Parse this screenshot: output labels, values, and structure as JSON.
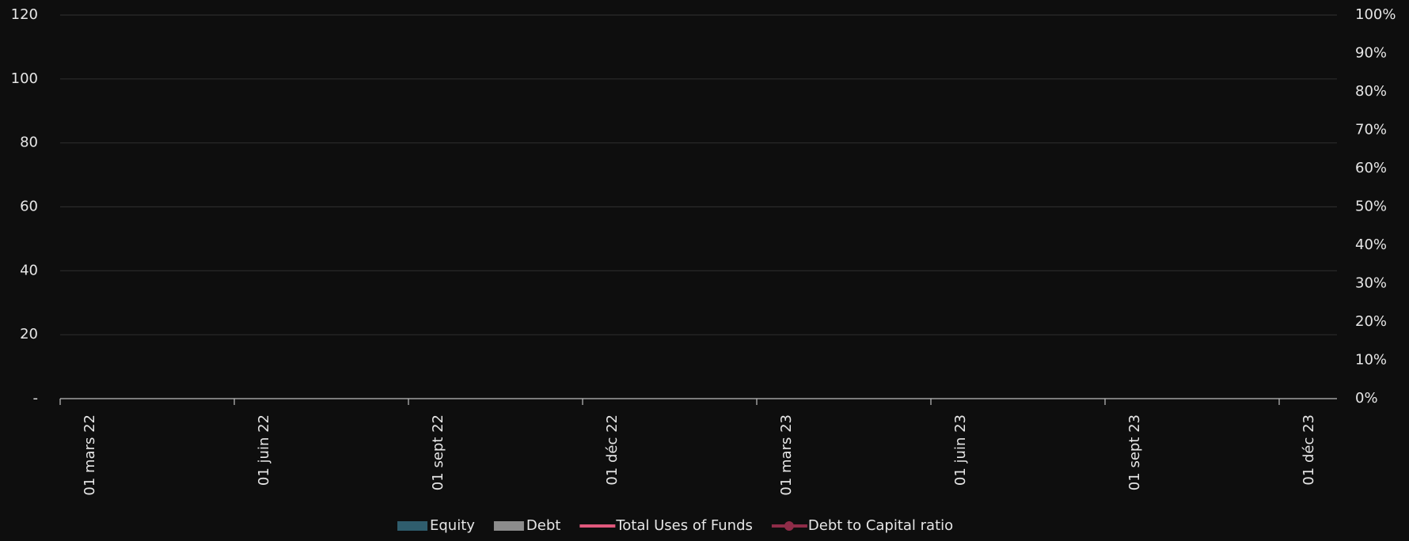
{
  "chart_data": {
    "type": "bar",
    "categories": [
      "01 mars 22",
      "01 juin 22",
      "01 sept 22",
      "01 déc 22",
      "01 mars 23",
      "01 juin 23",
      "01 sept 23",
      "01 déc 23"
    ],
    "series": [
      {
        "name": "Equity",
        "color": "#2f5d6d",
        "type": "bar",
        "values": [
          null,
          null,
          null,
          null,
          null,
          null,
          null,
          null
        ]
      },
      {
        "name": "Debt",
        "color": "#8c8c8c",
        "type": "bar",
        "values": [
          null,
          null,
          null,
          null,
          null,
          null,
          null,
          null
        ]
      },
      {
        "name": "Total Uses of Funds",
        "color": "#e0587c",
        "type": "line",
        "values": [
          null,
          null,
          null,
          null,
          null,
          null,
          null,
          null
        ]
      },
      {
        "name": "Debt to Capital ratio",
        "color": "#8e2c48",
        "type": "line",
        "marker": true,
        "axis": "y2",
        "values": [
          null,
          null,
          null,
          null,
          null,
          null,
          null,
          null
        ]
      }
    ],
    "ylim": [
      0,
      120
    ],
    "yticks": [
      {
        "value": 0,
        "label": "-"
      },
      20,
      40,
      60,
      80,
      100,
      120
    ],
    "y2lim": [
      0,
      100
    ],
    "y2ticks": [
      {
        "value": 0,
        "label": "0%"
      },
      {
        "value": 10,
        "label": "10%"
      },
      {
        "value": 20,
        "label": "20%"
      },
      {
        "value": 30,
        "label": "30%"
      },
      {
        "value": 40,
        "label": "40%"
      },
      {
        "value": 50,
        "label": "50%"
      },
      {
        "value": 60,
        "label": "60%"
      },
      {
        "value": 70,
        "label": "70%"
      },
      {
        "value": 80,
        "label": "80%"
      },
      {
        "value": 90,
        "label": "90%"
      },
      {
        "value": 100,
        "label": "100%"
      }
    ],
    "grid": true,
    "legend": "bottom"
  }
}
